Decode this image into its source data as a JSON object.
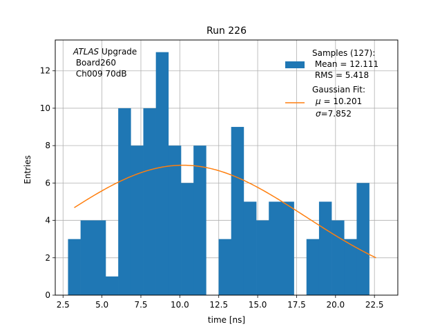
{
  "chart_data": {
    "type": "bar",
    "title": "Run 226",
    "xlabel": "time [ns]",
    "ylabel": "Entries",
    "xlim": [
      2.0,
      24.0
    ],
    "ylim": [
      0,
      13.65
    ],
    "xticks": [
      2.5,
      5.0,
      7.5,
      10.0,
      12.5,
      15.0,
      17.5,
      20.0,
      22.5
    ],
    "xtick_labels": [
      "2.5",
      "5.0",
      "7.5",
      "10.0",
      "12.5",
      "15.0",
      "17.5",
      "20.0",
      "22.5"
    ],
    "yticks": [
      0,
      2,
      4,
      6,
      8,
      10,
      12
    ],
    "ytick_labels": [
      "0",
      "2",
      "4",
      "6",
      "8",
      "10",
      "12"
    ],
    "grid": true,
    "bar_color": "#1f77b4",
    "fit_color": "#ff7f0e",
    "histogram": {
      "name": "Samples (127):",
      "bin_start": 2.82,
      "bin_width": 0.806,
      "counts": [
        3,
        4,
        4,
        1,
        10,
        8,
        10,
        13,
        8,
        6,
        8,
        0,
        3,
        9,
        5,
        4,
        5,
        5,
        0,
        3,
        5,
        4,
        3,
        6
      ]
    },
    "gaussian_fit": {
      "name": "Gaussian Fit:",
      "mu": 10.201,
      "sigma": 7.852,
      "amplitude": 6.95,
      "x_range": [
        3.22,
        22.6
      ]
    },
    "legend": {
      "position": "upper right",
      "samples_title": "Samples (127):",
      "samples_mean": " Mean = 12.111",
      "samples_rms": " RMS = 5.418",
      "fit_title": "Gaussian Fit:",
      "fit_mu_symbol": "μ",
      "fit_mu_text": " = 10.201",
      "fit_sigma_symbol": "σ",
      "fit_sigma_text": "=7.852"
    },
    "annotation": {
      "atlas": "ATLAS",
      "upgrade": " Upgrade",
      "board": " Board260",
      "channel": " Ch009 70dB"
    }
  }
}
